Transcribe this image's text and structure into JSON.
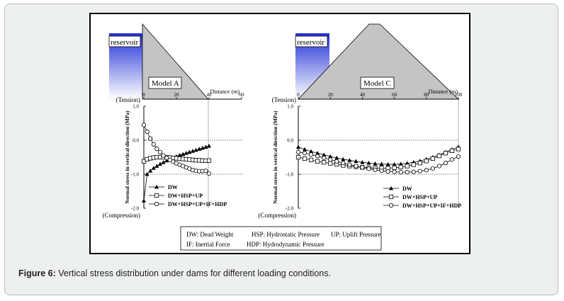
{
  "caption": {
    "label": "Figure 6:",
    "text": "Vertical stress distribution under dams for different loading conditions."
  },
  "colors": {
    "reservoir_top": "#1f2fd6",
    "reservoir_bottom": "#ffffff",
    "dam_fill": "#c4c4c4"
  },
  "common": {
    "ylabel": "Normal stress in vertical direction (MPa)",
    "tension_label": "(Tension)",
    "compression_label": "(Compression)",
    "reservoir_label": "reservoir",
    "xaxis_title": "Distance (m)"
  },
  "legend_box": {
    "row1": [
      "DW: Dead Weight",
      "HSP: Hydrostatic Pressure",
      "UP: Uplift Pressure"
    ],
    "row2": [
      "IF: Inertial Force",
      "HDP: Hydrodynamic Pressure"
    ]
  },
  "chart_data": [
    {
      "type": "line",
      "model": "Model A",
      "xlabel": "Distance (m)",
      "ylabel": "Normal stress in vertical direction (MPa)",
      "xlim": [
        0,
        60
      ],
      "x_ticks": [
        "0",
        "20",
        "40",
        "60"
      ],
      "ylim": [
        -2.0,
        1.0
      ],
      "y_ticks": [
        "1.0",
        "0.0",
        "-1.0",
        "-2.0"
      ],
      "legend_position": "bottom-left",
      "x": [
        0,
        2,
        4,
        6,
        8,
        10,
        12,
        14,
        16,
        18,
        20,
        22,
        24,
        26,
        28,
        30,
        32,
        34,
        36,
        38,
        40
      ],
      "series": [
        {
          "name": "DW",
          "marker": "filled-triangle",
          "values": [
            -1.78,
            -1.0,
            -0.9,
            -0.82,
            -0.76,
            -0.7,
            -0.65,
            -0.6,
            -0.56,
            -0.52,
            -0.48,
            -0.44,
            -0.41,
            -0.38,
            -0.35,
            -0.32,
            -0.29,
            -0.26,
            -0.23,
            -0.2,
            -0.17
          ]
        },
        {
          "name": "DW+HSP+UP",
          "marker": "open-square",
          "values": [
            -0.62,
            -0.56,
            -0.53,
            -0.51,
            -0.5,
            -0.5,
            -0.5,
            -0.5,
            -0.51,
            -0.52,
            -0.53,
            -0.54,
            -0.55,
            -0.56,
            -0.57,
            -0.58,
            -0.59,
            -0.59,
            -0.6,
            -0.6,
            -0.6
          ]
        },
        {
          "name": "DW+HSP+UP+IF+HDP",
          "marker": "open-circle",
          "values": [
            0.45,
            0.25,
            0.05,
            -0.12,
            -0.25,
            -0.35,
            -0.45,
            -0.52,
            -0.58,
            -0.63,
            -0.68,
            -0.72,
            -0.76,
            -0.8,
            -0.84,
            -0.88,
            -0.9,
            -0.91,
            -0.91,
            -0.9,
            -0.98
          ]
        }
      ]
    },
    {
      "type": "line",
      "model": "Model C",
      "xlabel": "Distance (m)",
      "ylabel": "Normal stress in vertical direction (MPa)",
      "xlim": [
        0,
        100
      ],
      "x_ticks": [
        "0",
        "20",
        "40",
        "60",
        "80",
        "100"
      ],
      "ylim": [
        -2.0,
        1.0
      ],
      "y_ticks": [
        "1.0",
        "0.0",
        "-1.0",
        "-2.0"
      ],
      "legend_position": "bottom-right",
      "x": [
        0,
        4,
        8,
        12,
        16,
        20,
        24,
        28,
        32,
        36,
        40,
        44,
        48,
        52,
        56,
        60,
        64,
        68,
        72,
        76,
        80,
        84,
        88,
        92,
        96,
        100
      ],
      "series": [
        {
          "name": "DW",
          "marker": "filled-triangle",
          "values": [
            -0.2,
            -0.27,
            -0.33,
            -0.38,
            -0.43,
            -0.48,
            -0.52,
            -0.56,
            -0.59,
            -0.62,
            -0.65,
            -0.67,
            -0.69,
            -0.7,
            -0.71,
            -0.71,
            -0.7,
            -0.68,
            -0.65,
            -0.61,
            -0.56,
            -0.5,
            -0.43,
            -0.35,
            -0.27,
            -0.2
          ]
        },
        {
          "name": "DW+HSP+UP",
          "marker": "open-square",
          "values": [
            -0.5,
            -0.54,
            -0.58,
            -0.62,
            -0.65,
            -0.68,
            -0.71,
            -0.74,
            -0.76,
            -0.78,
            -0.8,
            -0.81,
            -0.82,
            -0.82,
            -0.82,
            -0.81,
            -0.79,
            -0.76,
            -0.72,
            -0.67,
            -0.61,
            -0.54,
            -0.46,
            -0.38,
            -0.31,
            -0.26
          ]
        },
        {
          "name": "DW+HSP+UP+IF+HDP",
          "marker": "open-circle",
          "values": [
            -0.35,
            -0.38,
            -0.42,
            -0.47,
            -0.52,
            -0.57,
            -0.62,
            -0.67,
            -0.72,
            -0.76,
            -0.8,
            -0.84,
            -0.87,
            -0.9,
            -0.92,
            -0.93,
            -0.94,
            -0.94,
            -0.93,
            -0.91,
            -0.88,
            -0.83,
            -0.76,
            -0.67,
            -0.57,
            -0.48
          ]
        }
      ]
    }
  ]
}
